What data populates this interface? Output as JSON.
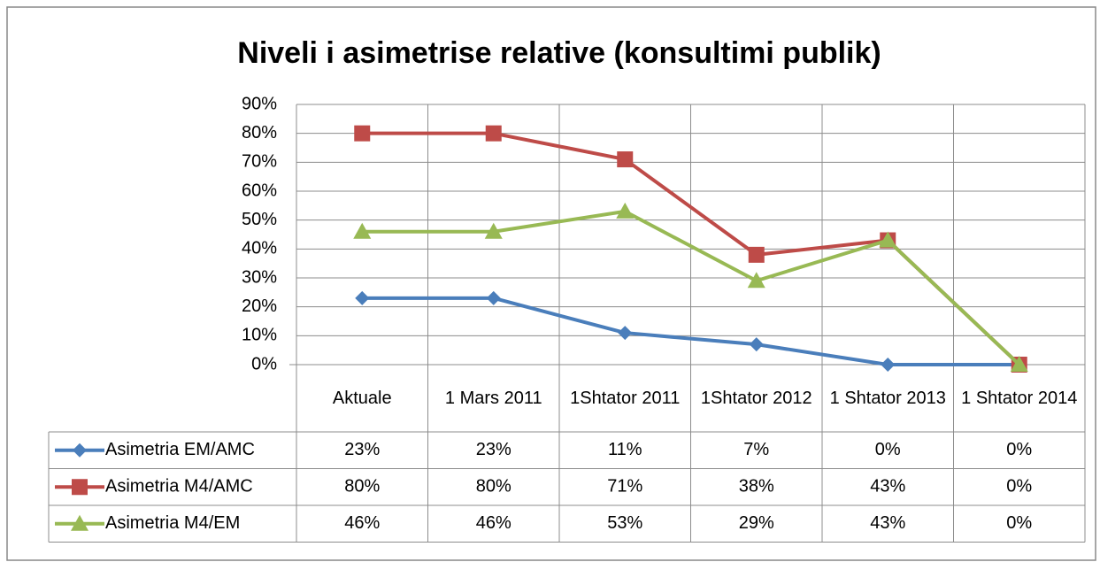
{
  "chart_data": {
    "type": "line",
    "title": "Niveli i asimetrise relative (konsultimi publik)",
    "categories": [
      "Aktuale",
      "1 Mars 2011",
      "1Shtator 2011",
      "1Shtator 2012",
      "1 Shtator 2013",
      "1 Shtator 2014"
    ],
    "series": [
      {
        "name": "Asimetria EM/AMC",
        "color": "#4a7ebb",
        "marker": "diamond",
        "values": [
          23,
          23,
          11,
          7,
          0,
          0
        ],
        "value_labels": [
          "23%",
          "23%",
          "11%",
          "7%",
          "0%",
          "0%"
        ]
      },
      {
        "name": "Asimetria M4/AMC",
        "color": "#be4b48",
        "marker": "square",
        "values": [
          80,
          80,
          71,
          38,
          43,
          0
        ],
        "value_labels": [
          "80%",
          "80%",
          "71%",
          "38%",
          "43%",
          "0%"
        ]
      },
      {
        "name": "Asimetria M4/EM",
        "color": "#98b954",
        "marker": "triangle",
        "values": [
          46,
          46,
          53,
          29,
          43,
          0
        ],
        "value_labels": [
          "46%",
          "46%",
          "53%",
          "29%",
          "43%",
          "0%"
        ]
      }
    ],
    "ylim": [
      0,
      90
    ],
    "yticks": [
      {
        "value": 0,
        "label": "0%"
      },
      {
        "value": 10,
        "label": "10%"
      },
      {
        "value": 20,
        "label": "20%"
      },
      {
        "value": 30,
        "label": "30%"
      },
      {
        "value": 40,
        "label": "40%"
      },
      {
        "value": 50,
        "label": "50%"
      },
      {
        "value": 60,
        "label": "60%"
      },
      {
        "value": 70,
        "label": "70%"
      },
      {
        "value": 80,
        "label": "80%"
      },
      {
        "value": 90,
        "label": "90%"
      }
    ],
    "grid": true,
    "data_table": true
  }
}
